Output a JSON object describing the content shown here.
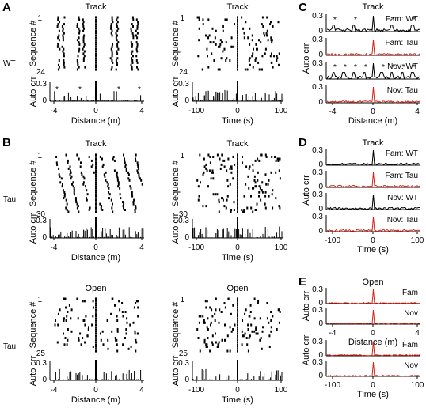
{
  "panel_letters": {
    "a": "A",
    "b": "B",
    "c": "C",
    "d": "D",
    "e": "E"
  },
  "titles": {
    "track": "Track",
    "open": "Open"
  },
  "row_labels": {
    "wt": "WT",
    "tau_1": "Tau",
    "tau_2": "Tau"
  },
  "axis_labels": {
    "sequence": "Sequence #",
    "autocorr": "Auto crr",
    "distance": "Distance (m)",
    "time": "Time (s)"
  },
  "tick_labels": {
    "dist": [
      "-4",
      "0",
      "4"
    ],
    "time": [
      "-100",
      "0",
      "100"
    ],
    "ac_top": "0.3",
    "ac_zero": "0",
    "seq_first": "1",
    "seq_last_wt": "24",
    "seq_last_tau_track": "30",
    "seq_last_tau_open": "25"
  },
  "trace_labels": {
    "fam_wt": "Fam: WT",
    "fam_tau": "Fam: Tau",
    "nov_wt": "Nov: WT",
    "nov_tau": "Nov: Tau",
    "fam": "Fam",
    "nov": "Nov"
  },
  "colors": {
    "wt_trace": "#000000",
    "tau_trace": "#d62418",
    "axis": "#000000"
  },
  "star_glyph": "*",
  "chart_data": [
    {
      "panel": "A",
      "type": "raster",
      "condition": "WT",
      "title": "Track",
      "xlabel": "Distance (m)",
      "ylabel": "Sequence #",
      "x_range": [
        -4.5,
        4.5
      ],
      "n_sequences": 24,
      "event_columns_m": [
        -3.8,
        -3.4,
        -2.3,
        -1.8,
        1.8,
        2.3,
        3.4,
        3.8
      ],
      "autocorr": {
        "ylabel": "Auto crr",
        "ylim": [
          0,
          0.3
        ],
        "yticks": [
          0,
          0.3
        ],
        "peak_lags_m": [
          -3.8,
          -2.3,
          2.3,
          3.8
        ],
        "marked_with": "*"
      }
    },
    {
      "panel": "A",
      "type": "raster",
      "condition": "WT",
      "title": "Track",
      "xlabel": "Time (s)",
      "ylabel": "Sequence #",
      "x_range": [
        -100,
        100
      ],
      "n_sequences": 24,
      "autocorr": {
        "ylabel": "Auto crr",
        "ylim": [
          0,
          0.3
        ],
        "yticks": [
          0,
          0.3
        ]
      }
    },
    {
      "panel": "B",
      "type": "raster",
      "condition": "Tau",
      "title": "Track",
      "xlabel": "Distance (m)",
      "ylabel": "Sequence #",
      "x_range": [
        -4.5,
        4.5
      ],
      "n_sequences": 30,
      "autocorr": {
        "ylabel": "Auto crr",
        "ylim": [
          0,
          0.3
        ],
        "yticks": [
          0,
          0.3
        ]
      }
    },
    {
      "panel": "B",
      "type": "raster",
      "condition": "Tau",
      "title": "Track",
      "xlabel": "Time (s)",
      "ylabel": "Sequence #",
      "x_range": [
        -100,
        100
      ],
      "n_sequences": 30,
      "autocorr": {
        "ylabel": "Auto crr",
        "ylim": [
          0,
          0.3
        ],
        "yticks": [
          0,
          0.3
        ]
      }
    },
    {
      "panel": "B",
      "type": "raster",
      "condition": "Tau",
      "title": "Open",
      "xlabel": "Distance (m)",
      "ylabel": "Sequence #",
      "x_range": [
        -4.5,
        4.5
      ],
      "n_sequences": 25,
      "autocorr": {
        "ylabel": "Auto crr",
        "ylim": [
          0,
          0.3
        ],
        "yticks": [
          0,
          0.3
        ]
      }
    },
    {
      "panel": "B",
      "type": "raster",
      "condition": "Tau",
      "title": "Open",
      "xlabel": "Time (s)",
      "ylabel": "Sequence #",
      "x_range": [
        -100,
        100
      ],
      "n_sequences": 25,
      "autocorr": {
        "ylabel": "Auto crr",
        "ylim": [
          0,
          0.3
        ],
        "yticks": [
          0,
          0.3
        ]
      }
    },
    {
      "panel": "C",
      "type": "line",
      "title": "Track",
      "xlabel": "Distance (m)",
      "ylabel": "Auto crr",
      "x_range": [
        -4.5,
        4.5
      ],
      "ylim": [
        0,
        0.3
      ],
      "yticks": [
        0,
        0.3
      ],
      "series": [
        {
          "name": "Fam: WT",
          "color": "#000000",
          "peak_lags_m": [
            -3.8,
            -2.3,
            2.3,
            3.8
          ]
        },
        {
          "name": "Fam: Tau",
          "color": "#d62418",
          "peak_lags_m": []
        },
        {
          "name": "Nov: WT",
          "color": "#000000",
          "peak_lags_m": [
            -3.8,
            -3.0,
            -1.8,
            -1.0,
            1.0,
            1.8,
            3.0,
            3.8
          ]
        },
        {
          "name": "Nov: Tau",
          "color": "#d62418",
          "peak_lags_m": []
        }
      ]
    },
    {
      "panel": "D",
      "type": "line",
      "title": "Track",
      "xlabel": "Time (s)",
      "ylabel": "Auto crr",
      "x_range": [
        -100,
        100
      ],
      "ylim": [
        0,
        0.3
      ],
      "yticks": [
        0,
        0.3
      ],
      "series": [
        {
          "name": "Fam: WT",
          "color": "#000000"
        },
        {
          "name": "Fam: Tau",
          "color": "#d62418"
        },
        {
          "name": "Nov: WT",
          "color": "#000000"
        },
        {
          "name": "Nov: Tau",
          "color": "#d62418"
        }
      ]
    },
    {
      "panel": "E",
      "type": "line",
      "title": "Open",
      "xlabel": "Distance (m)",
      "ylabel": "Auto crr",
      "x_range": [
        -4.5,
        4.5
      ],
      "ylim": [
        0,
        0.3
      ],
      "yticks": [
        0,
        0.3
      ],
      "series": [
        {
          "name": "Fam",
          "color": "#d62418"
        },
        {
          "name": "Nov",
          "color": "#d62418"
        }
      ]
    },
    {
      "panel": "E",
      "type": "line",
      "title": "Open",
      "xlabel": "Time (s)",
      "ylabel": "Auto crr",
      "x_range": [
        -100,
        100
      ],
      "ylim": [
        0,
        0.3
      ],
      "yticks": [
        0,
        0.3
      ],
      "series": [
        {
          "name": "Fam",
          "color": "#d62418"
        },
        {
          "name": "Nov",
          "color": "#d62418"
        }
      ]
    }
  ]
}
